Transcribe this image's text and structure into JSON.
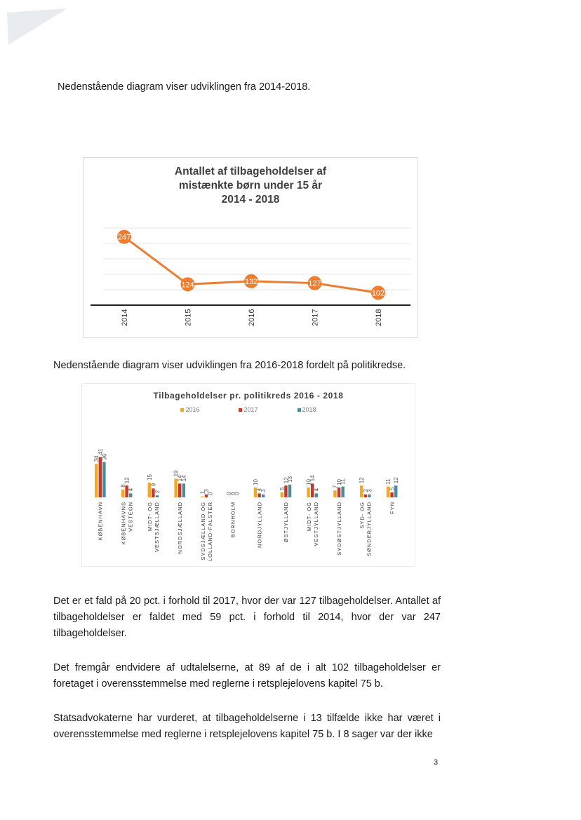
{
  "document": {
    "intro_1": "Nedenstående diagram viser udviklingen fra 2014-2018.",
    "intro_2": "Nedenstående diagram viser udviklingen fra 2016-2018 fordelt på politikredse.",
    "paragraph_1": "Det er et fald på 20 pct. i forhold til 2017, hvor der var 127 tilbageholdelser. Antallet af tilbageholdelser er faldet med 59 pct. i forhold til 2014, hvor der var 247 tilbageholdelser.",
    "paragraph_2": "Det fremgår endvidere af udtalelserne, at 89 af de i alt 102 tilbageholdelser er foretaget i overensstemmelse med reglerne i retsplejelovens kapitel 75 b.",
    "paragraph_3": "Statsadvokaterne har vurderet, at tilbageholdelserne i 13 tilfælde ikke har været i overensstemmelse med reglerne i retsplejelovens kapitel 75 b. I 8 sager var der ikke",
    "page_number": "3"
  },
  "chart_data": [
    {
      "type": "line",
      "title_lines": [
        "Antallet af tilbageholdelser af",
        "mistænkte børn under 15 år",
        "2014 - 2018"
      ],
      "categories": [
        "2014",
        "2015",
        "2016",
        "2017",
        "2018"
      ],
      "values": [
        247,
        124,
        132,
        127,
        102
      ],
      "color": "#ed7d31",
      "grid": true
    },
    {
      "type": "bar",
      "title": "Tilbageholdelser pr. politikreds 2016 - 2018",
      "categories": [
        [
          "KØBENHAVN"
        ],
        [
          "KØBENHAVNS",
          "VESTEGN"
        ],
        [
          "MIDT- OG",
          "VESTSJÆLLAND"
        ],
        [
          "NORDSJÆLLAND"
        ],
        [
          "SYDSJÆLLAND OG",
          "LOLLAND-FALSTER"
        ],
        [
          "BORNHOLM"
        ],
        [
          "NORDJYLLAND"
        ],
        [
          "ØSTJYLLAND"
        ],
        [
          "MIDT- OG",
          "VESTJYLLAND"
        ],
        [
          "SYDØSTJYLLAND"
        ],
        [
          "SYD- OG",
          "SØNDERJYLLAND"
        ],
        [
          "FYN"
        ]
      ],
      "series": [
        {
          "name": "2016",
          "color": "#f5a623",
          "values": [
            34,
            8,
            15,
            19,
            1,
            0,
            10,
            5,
            10,
            7,
            12,
            11
          ]
        },
        {
          "name": "2017",
          "color": "#c0392b",
          "values": [
            41,
            12,
            9,
            14,
            3,
            0,
            4,
            12,
            14,
            10,
            3,
            5
          ]
        },
        {
          "name": "2018",
          "color": "#4a8a9b",
          "values": [
            36,
            4,
            2,
            14,
            0,
            0,
            3,
            13,
            4,
            11,
            3,
            12
          ]
        }
      ],
      "legend_position": "top"
    }
  ]
}
